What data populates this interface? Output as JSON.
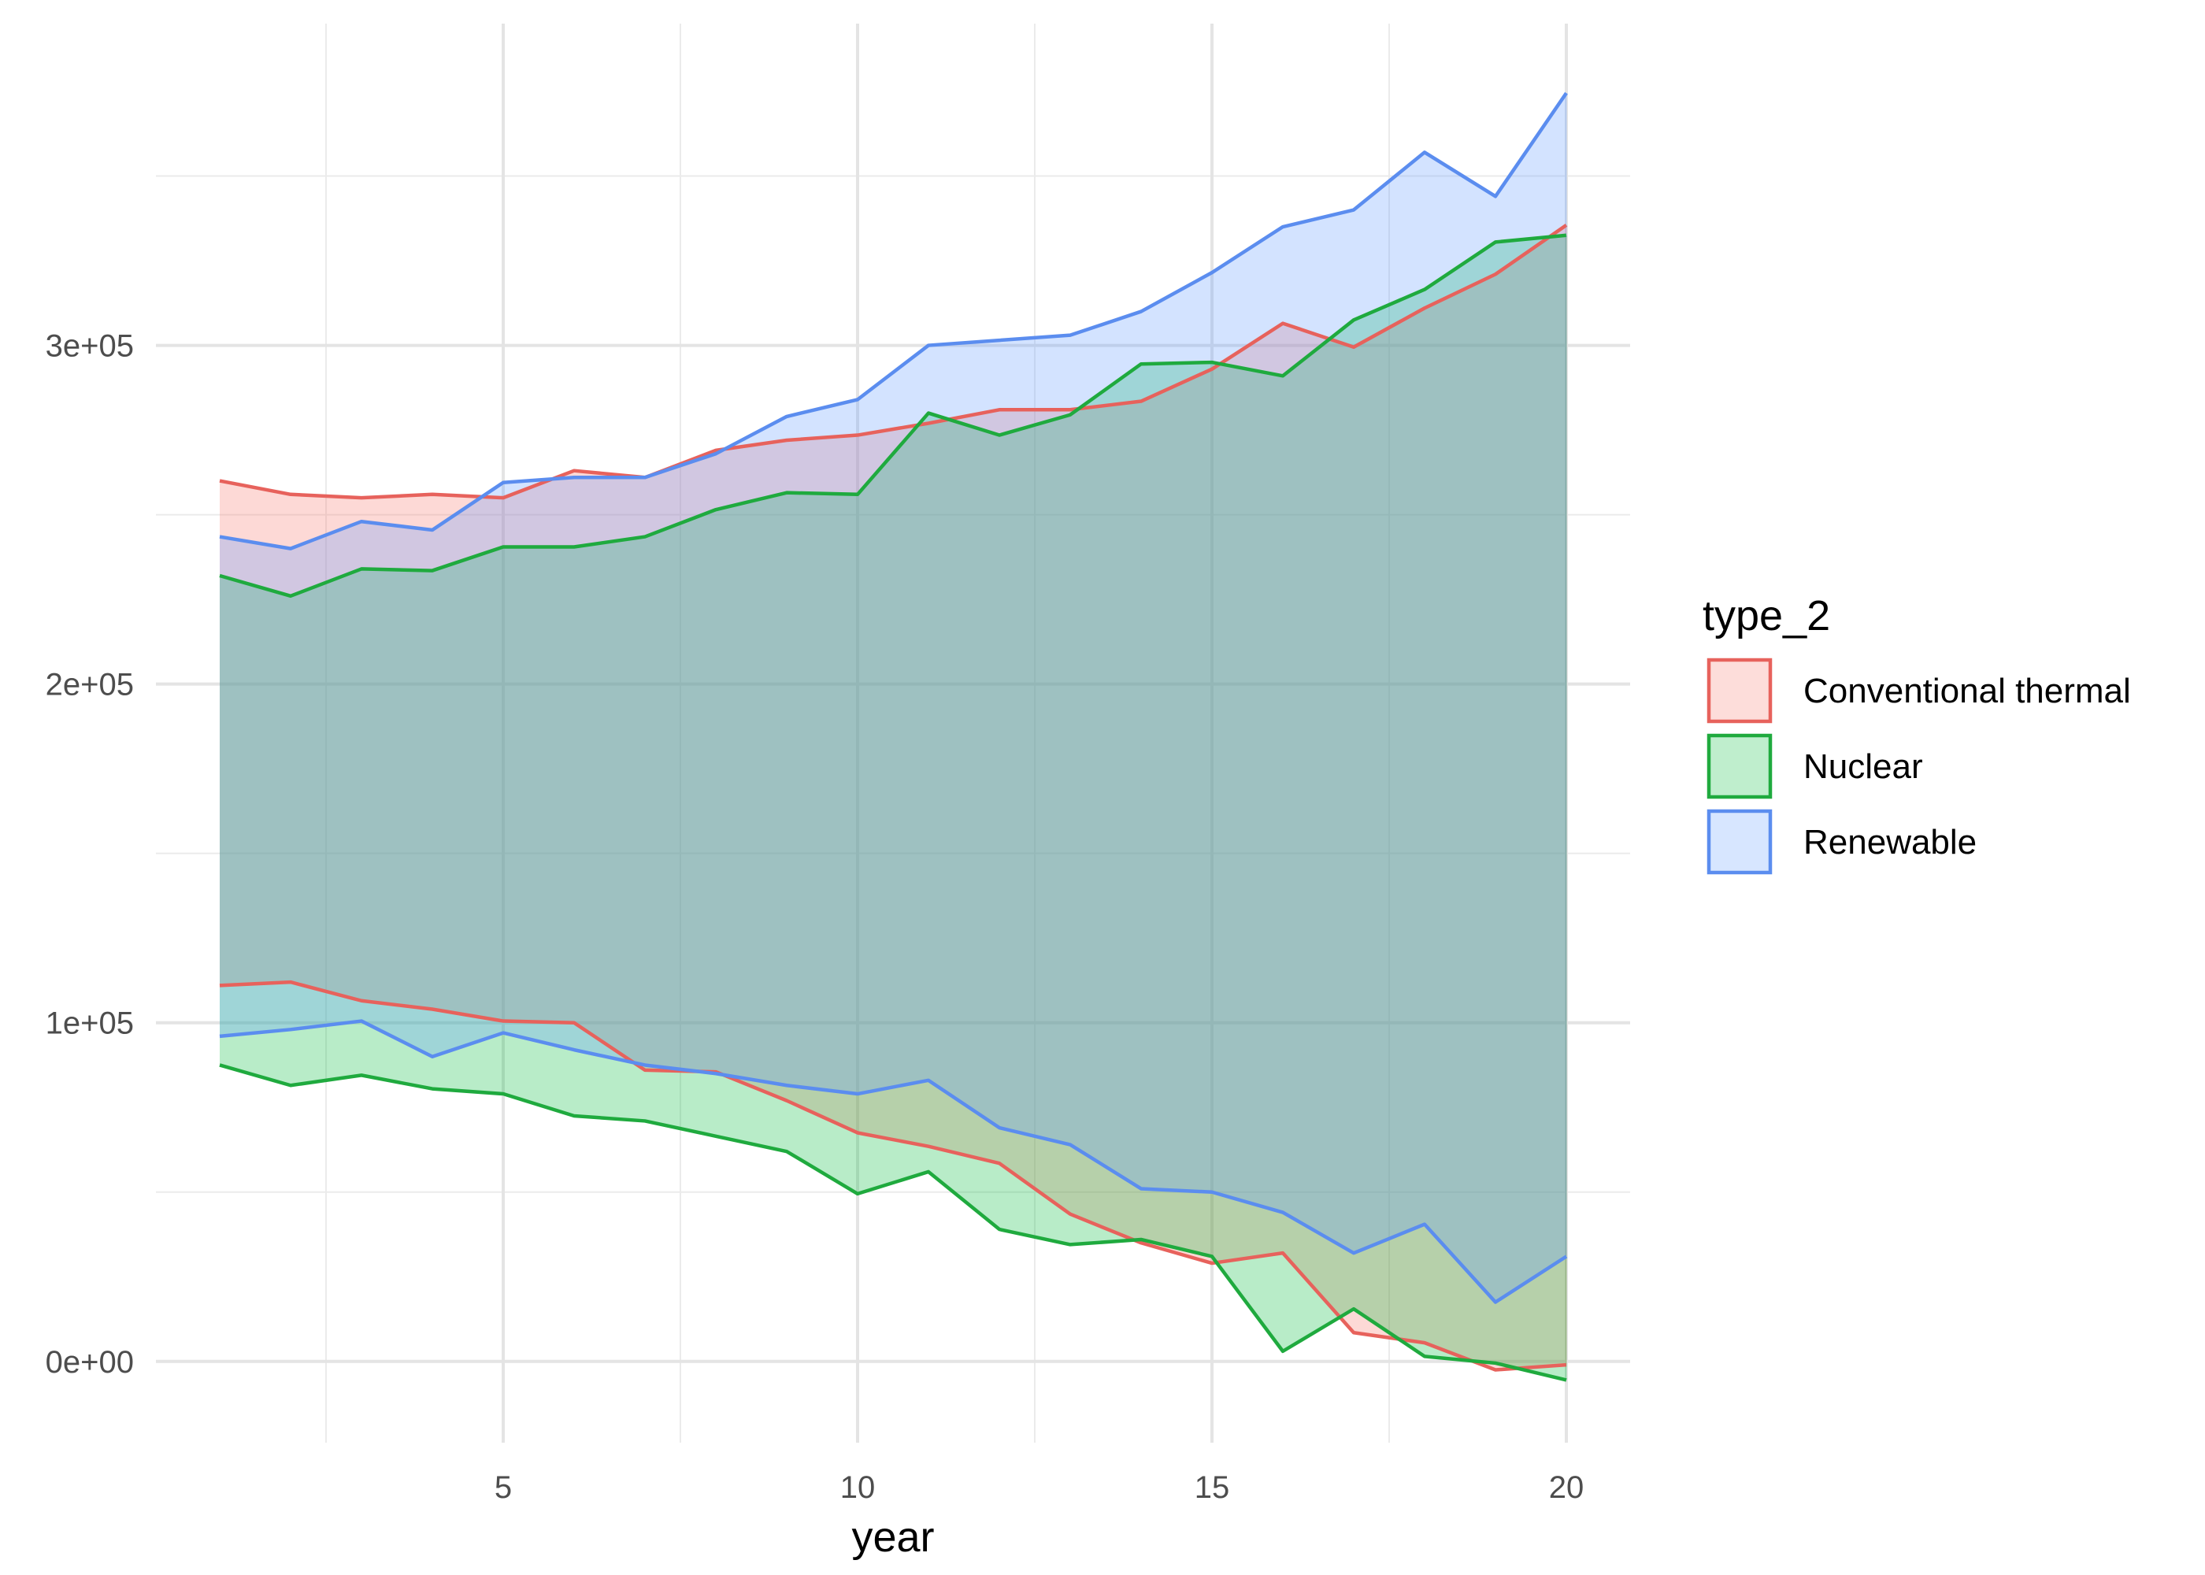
{
  "chart_data": {
    "type": "area",
    "title": "",
    "xlabel": "year",
    "ylabel": "",
    "x": [
      1,
      2,
      3,
      4,
      5,
      6,
      7,
      8,
      9,
      10,
      11,
      12,
      13,
      14,
      15,
      16,
      17,
      18,
      19,
      20
    ],
    "xlim": [
      0.1,
      20.9
    ],
    "ylim": [
      -24000,
      395000
    ],
    "x_ticks": [
      5,
      10,
      15,
      20
    ],
    "x_tick_labels": [
      "5",
      "10",
      "15",
      "20"
    ],
    "y_ticks": [
      0,
      100000,
      200000,
      300000
    ],
    "y_tick_labels": [
      "0e+00",
      "1e+05",
      "2e+05",
      "3e+05"
    ],
    "grid": true,
    "legend": {
      "title": "type_2",
      "position": "right"
    },
    "series": [
      {
        "name": "Conventional thermal",
        "color": "#E7625C",
        "fill": "#F8766D",
        "upper": [
          260000,
          256000,
          255000,
          256000,
          255000,
          263000,
          261000,
          269000,
          272000,
          273500,
          277000,
          281000,
          281000,
          283500,
          293000,
          306500,
          299500,
          311000,
          321000,
          335500
        ],
        "lower": [
          111000,
          112000,
          106500,
          104000,
          100500,
          100000,
          86000,
          85500,
          77000,
          67500,
          63500,
          58500,
          43500,
          35000,
          29000,
          32000,
          8500,
          5500,
          -2500,
          -1000
        ]
      },
      {
        "name": "Nuclear",
        "color": "#1FAA3E",
        "fill": "#00BA38",
        "upper": [
          232000,
          226000,
          234000,
          233500,
          240500,
          240500,
          243500,
          251500,
          256500,
          256000,
          280000,
          273500,
          279500,
          294500,
          295000,
          291000,
          307500,
          316500,
          330500,
          332500
        ],
        "lower": [
          87500,
          81500,
          84500,
          80500,
          79000,
          72500,
          71000,
          66500,
          62000,
          49500,
          56000,
          39000,
          34500,
          36000,
          31000,
          3000,
          15500,
          1500,
          -500,
          -5500
        ]
      },
      {
        "name": "Renewable",
        "color": "#5B8DEF",
        "fill": "#619CFF",
        "upper": [
          243500,
          240000,
          248000,
          245500,
          259500,
          261000,
          261000,
          268000,
          279000,
          284000,
          300000,
          301500,
          303000,
          310000,
          321500,
          335000,
          340000,
          357000,
          344000,
          374500
        ],
        "lower": [
          96000,
          98000,
          100500,
          90000,
          97000,
          92000,
          87500,
          85000,
          81500,
          79000,
          83000,
          69000,
          64000,
          51000,
          50000,
          44000,
          32000,
          40500,
          17500,
          31000
        ]
      }
    ]
  }
}
